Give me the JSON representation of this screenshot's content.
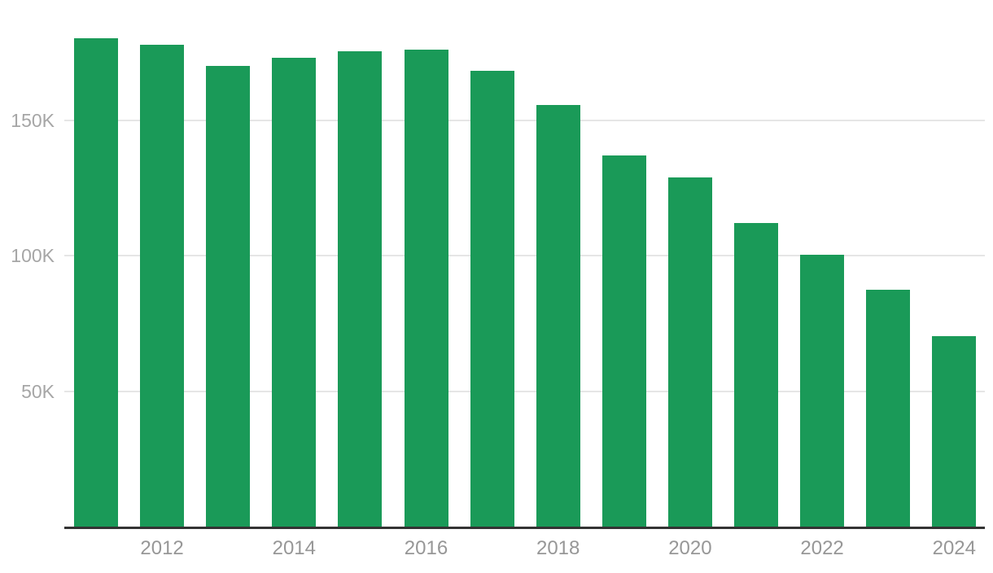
{
  "chart_data": {
    "type": "bar",
    "title": "",
    "xlabel": "",
    "ylabel": "",
    "categories": [
      "2011",
      "2012",
      "2013",
      "2014",
      "2015",
      "2016",
      "2017",
      "2018",
      "2019",
      "2020",
      "2021",
      "2022",
      "2023",
      "2024"
    ],
    "values": [
      180200,
      178000,
      170000,
      173000,
      175500,
      176200,
      168200,
      155700,
      137000,
      129000,
      112000,
      100300,
      87500,
      70300
    ],
    "x_tick_labels": [
      "2012",
      "2014",
      "2016",
      "2018",
      "2020",
      "2022",
      "2024"
    ],
    "y_ticks": [
      {
        "value": 50000,
        "label": "50K"
      },
      {
        "value": 100000,
        "label": "100K"
      },
      {
        "value": 150000,
        "label": "150K"
      }
    ],
    "ylim": [
      0,
      195000
    ],
    "grid": "horizontal",
    "legend": "none",
    "colors": {
      "bar": "#1a9a58",
      "gridline": "#e6e6e6",
      "axis_line": "#333333",
      "y_tick_label": "#a6a6a6",
      "x_tick_label": "#979797",
      "background": "#ffffff"
    }
  }
}
